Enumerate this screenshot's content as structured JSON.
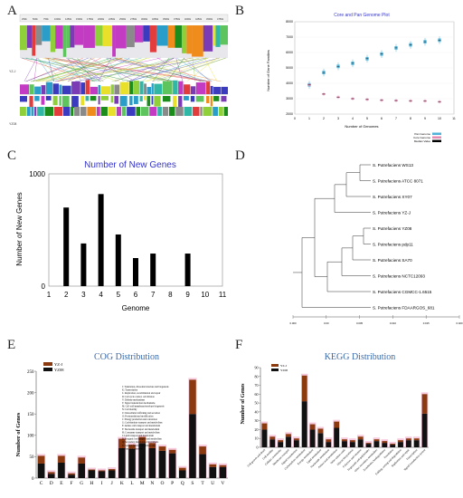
{
  "panels": {
    "a": {
      "label": "A",
      "ruler_ticks": [
        "250k",
        "500k",
        "750k",
        "1000k",
        "1250k",
        "1500k",
        "1750k",
        "2000k",
        "2250k",
        "2500k",
        "2750k",
        "3000k",
        "3250k",
        "3500k",
        "3750k",
        "4000k",
        "4250k",
        "4500k",
        "4750k"
      ],
      "side_label": "YZ-J",
      "bottom_label": "YZ08"
    },
    "b": {
      "label": "B",
      "title": "Core and Pan Genome Plot",
      "xlabel": "Number of Genomes",
      "ylabel": "Number of Gene Families",
      "legend": [
        "Pan Genome",
        "Core Genome",
        "Median Value"
      ],
      "colors": {
        "pan": "#4fb3d9",
        "core": "#e48bb3",
        "median": "#000000"
      }
    },
    "c": {
      "label": "C"
    },
    "d": {
      "label": "D",
      "strains": [
        "S. Putrefaciens WS13",
        "S. Putrefaciens ATCC 8071",
        "S. Putrefaciens XY07",
        "S. Putrefaciens YZ-J",
        "S. Putrefaciens YZ08",
        "S. Putrefaciens pdp11",
        "S. Putrefaciens SA70",
        "S. Putrefaciens NCTC12093",
        "S. Putrefaciens CGMCC-1.6515",
        "S. Putrefaciens FDAARGOS_681"
      ],
      "scale_labels": [
        "0.000",
        "0.00",
        "0.005",
        "0.010",
        "0.015",
        "0.020"
      ]
    },
    "e": {
      "label": "E",
      "cog_legend": [
        "J: Translation, ribosomal structure and biogenesis",
        "K: Transcription",
        "L: Replication, recombination and repair",
        "D: Cell cycle control, cell division",
        "V: Defense mechanisms",
        "T: Signal transduction mechanisms",
        "M: Cell wall/membrane/envelope biogenesis",
        "N: Cell motility",
        "U: Intracellular trafficking and secretion",
        "O: Posttranslational modification",
        "C: Energy production and conversion",
        "G: Carbohydrate transport and metabolism",
        "E: Amino acid transport and metabolism",
        "F: Nucleotide transport and metabolism",
        "H: Coenzyme transport and metabolism",
        "I: Lipid transport and metabolism",
        "P: Inorganic ion transport and metabolism",
        "Q: Secondary metabolites biosynthesis",
        "R: General function prediction only",
        "S: Function unknown"
      ]
    },
    "f": {
      "label": "F",
      "kegg_categories": [
        "Cell growth and death",
        "Cell motility",
        "Cellular community",
        "Membrane transport",
        "Signal transduction",
        "Carbohydrate metabolism",
        "Energy metabolism",
        "Lipid metabolism",
        "Nucleotide metabolism",
        "Amino acid metabolism",
        "Other amino acids",
        "Glycan biosynthesis",
        "Cofactors and vitamins",
        "Terpenoids and polyketides",
        "Other secondary metabolites",
        "Xenobiotics biodegradation",
        "Translation",
        "Folding, sorting and degradation",
        "Replication and repair",
        "Transcription",
        "Signal transduction system"
      ]
    }
  },
  "chart_data": [
    {
      "id": "core-pan",
      "type": "scatter",
      "title": "Core and Pan Genome Plot",
      "xlabel": "Number of Genomes",
      "ylabel": "Number of Gene Families",
      "xlim": [
        0,
        11
      ],
      "ylim": [
        2000,
        8000
      ],
      "xticks": [
        0,
        1,
        2,
        3,
        4,
        5,
        6,
        7,
        8,
        9,
        10,
        11
      ],
      "yticks": [
        2000,
        3000,
        4000,
        5000,
        6000,
        7000,
        8000
      ],
      "series": [
        {
          "name": "Pan Genome",
          "x": [
            1,
            2,
            3,
            4,
            5,
            6,
            7,
            8,
            9,
            10
          ],
          "values": [
            3900,
            4700,
            5100,
            5300,
            5600,
            5900,
            6300,
            6500,
            6700,
            6800
          ]
        },
        {
          "name": "Core Genome",
          "x": [
            1,
            2,
            3,
            4,
            5,
            6,
            7,
            8,
            9,
            10
          ],
          "values": [
            3900,
            3300,
            3100,
            3000,
            2950,
            2900,
            2880,
            2860,
            2850,
            2800
          ]
        }
      ]
    },
    {
      "id": "new-genes",
      "type": "bar",
      "title": "Number of New Genes",
      "xlabel": "Genome",
      "ylabel": "Number of New Genes",
      "categories": [
        "2",
        "3",
        "4",
        "5",
        "6",
        "7",
        "8",
        "9",
        "10"
      ],
      "values": [
        700,
        380,
        820,
        460,
        250,
        290,
        0,
        290,
        0
      ],
      "xlim": [
        1,
        11
      ],
      "ylim": [
        0,
        1000
      ],
      "xticks": [
        "1",
        "2",
        "3",
        "4",
        "5",
        "6",
        "7",
        "8",
        "9",
        "10",
        "11"
      ],
      "yticks": [
        "0",
        "1000"
      ]
    },
    {
      "id": "cog",
      "type": "bar",
      "title": "COG Distribution",
      "xlabel": "",
      "ylabel": "Number of Genes",
      "categories": [
        "C",
        "D",
        "E",
        "F",
        "G",
        "H",
        "I",
        "J",
        "K",
        "L",
        "M",
        "N",
        "O",
        "P",
        "Q",
        "S",
        "T",
        "U",
        "V"
      ],
      "ylim": [
        0,
        250
      ],
      "yticks": [
        "0",
        "50",
        "100",
        "150",
        "200",
        "250"
      ],
      "series": [
        {
          "name": "YZ-J",
          "values": [
            18,
            4,
            16,
            3,
            14,
            2,
            2,
            3,
            22,
            10,
            14,
            12,
            10,
            8,
            6,
            80,
            18,
            6,
            4
          ]
        },
        {
          "name": "YZ08",
          "values": [
            34,
            10,
            36,
            8,
            34,
            18,
            16,
            18,
            70,
            68,
            82,
            70,
            64,
            58,
            18,
            150,
            56,
            26,
            26
          ]
        }
      ]
    },
    {
      "id": "kegg",
      "type": "bar",
      "title": "KEGG Distribution",
      "xlabel": "",
      "ylabel": "Number of Genes",
      "categories": [
        "Cell growth and death",
        "Cell motility",
        "Cellular community",
        "Membrane transport",
        "Signal transduction",
        "Carbohydrate metabolism",
        "Energy metabolism",
        "Lipid metabolism",
        "Nucleotide metabolism",
        "Amino acid metabolism",
        "Other amino acids",
        "Glycan biosynthesis",
        "Cofactors and vitamins",
        "Terpenoids and polyketides",
        "Other secondary metabolites",
        "Xenobiotics biodegradation",
        "Translation",
        "Folding, sorting and degradation",
        "Replication and repair",
        "Transcription",
        "Signal transduction system"
      ],
      "ylim": [
        0,
        90
      ],
      "yticks": [
        "0",
        "10",
        "20",
        "30",
        "40",
        "50",
        "60",
        "70",
        "80",
        "90"
      ],
      "series": [
        {
          "name": "YZ-J",
          "values": [
            7,
            3,
            2,
            3,
            2,
            29,
            6,
            5,
            3,
            7,
            2,
            2,
            3,
            1,
            2,
            2,
            1,
            2,
            2,
            2,
            22
          ]
        },
        {
          "name": "YZ08",
          "values": [
            20,
            9,
            6,
            12,
            8,
            52,
            20,
            16,
            6,
            22,
            7,
            6,
            9,
            4,
            7,
            5,
            3,
            6,
            8,
            8,
            38
          ]
        }
      ]
    }
  ]
}
